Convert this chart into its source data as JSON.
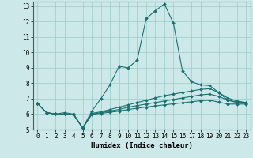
{
  "xlabel": "Humidex (Indice chaleur)",
  "bg_color": "#cce8e8",
  "grid_color": "#99cccc",
  "line_color": "#1a7070",
  "xlim": [
    -0.5,
    23.5
  ],
  "ylim": [
    5,
    13.3
  ],
  "yticks": [
    5,
    6,
    7,
    8,
    9,
    10,
    11,
    12,
    13
  ],
  "xticks": [
    0,
    1,
    2,
    3,
    4,
    5,
    6,
    7,
    8,
    9,
    10,
    11,
    12,
    13,
    14,
    15,
    16,
    17,
    18,
    19,
    20,
    21,
    22,
    23
  ],
  "series": [
    {
      "x": [
        0,
        1,
        2,
        3,
        4,
        5,
        6,
        7,
        8,
        9,
        10,
        11,
        12,
        13,
        14,
        15,
        16,
        17,
        18,
        19,
        20,
        21,
        22,
        23
      ],
      "y": [
        6.7,
        6.1,
        6.0,
        6.1,
        6.0,
        5.1,
        6.2,
        7.0,
        7.9,
        9.1,
        9.0,
        9.5,
        12.2,
        12.7,
        13.15,
        11.9,
        8.8,
        8.1,
        7.9,
        7.85,
        7.4,
        6.9,
        6.8,
        6.75
      ]
    },
    {
      "x": [
        0,
        1,
        2,
        3,
        4,
        5,
        6,
        7,
        8,
        9,
        10,
        11,
        12,
        13,
        14,
        15,
        16,
        17,
        18,
        19,
        20,
        21,
        22,
        23
      ],
      "y": [
        6.7,
        6.1,
        6.0,
        6.0,
        5.95,
        5.1,
        6.05,
        6.15,
        6.3,
        6.45,
        6.6,
        6.75,
        6.9,
        7.05,
        7.2,
        7.3,
        7.4,
        7.5,
        7.6,
        7.65,
        7.4,
        7.05,
        6.85,
        6.75
      ]
    },
    {
      "x": [
        0,
        1,
        2,
        3,
        4,
        5,
        6,
        7,
        8,
        9,
        10,
        11,
        12,
        13,
        14,
        15,
        16,
        17,
        18,
        19,
        20,
        21,
        22,
        23
      ],
      "y": [
        6.7,
        6.1,
        6.0,
        6.0,
        5.95,
        5.1,
        6.0,
        6.1,
        6.2,
        6.3,
        6.45,
        6.55,
        6.65,
        6.75,
        6.85,
        6.95,
        7.05,
        7.15,
        7.25,
        7.3,
        7.15,
        6.9,
        6.75,
        6.7
      ]
    },
    {
      "x": [
        0,
        1,
        2,
        3,
        4,
        5,
        6,
        7,
        8,
        9,
        10,
        11,
        12,
        13,
        14,
        15,
        16,
        17,
        18,
        19,
        20,
        21,
        22,
        23
      ],
      "y": [
        6.7,
        6.1,
        6.0,
        6.0,
        5.95,
        5.1,
        5.98,
        6.05,
        6.12,
        6.2,
        6.3,
        6.38,
        6.46,
        6.53,
        6.6,
        6.67,
        6.73,
        6.8,
        6.87,
        6.9,
        6.78,
        6.65,
        6.65,
        6.65
      ]
    }
  ]
}
